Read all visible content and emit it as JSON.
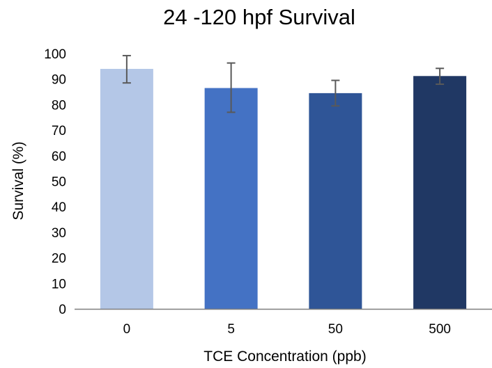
{
  "chart_data": {
    "type": "bar",
    "title": "24 -120 hpf Survival",
    "xlabel": "TCE Concentration (ppb)",
    "ylabel": "Survival (%)",
    "categories": [
      "0",
      "5",
      "50",
      "500"
    ],
    "values": [
      94,
      86.5,
      84.5,
      91.2
    ],
    "error_low": [
      88.5,
      77,
      79.5,
      88
    ],
    "error_high": [
      99.2,
      96.3,
      89.5,
      94.2
    ],
    "ylim": [
      0,
      100
    ],
    "yticks": [
      "0",
      "10",
      "20",
      "30",
      "40",
      "50",
      "60",
      "70",
      "80",
      "90",
      "100"
    ],
    "grid": false,
    "legend": "none",
    "bar_colors": [
      "#b4c7e7",
      "#4472c4",
      "#2f5597",
      "#203864"
    ],
    "error_bar_color": "#595959",
    "axis_color": "#7f7f7f"
  }
}
